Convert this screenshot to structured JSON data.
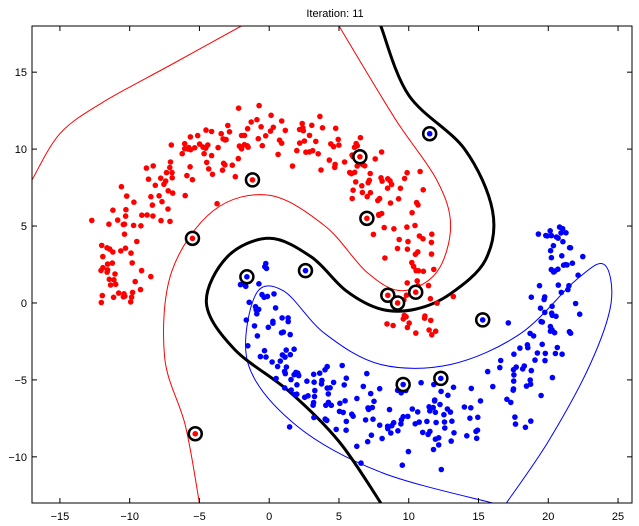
{
  "chart_data": {
    "type": "scatter",
    "title": "Iteration: 11",
    "xlabel": "",
    "ylabel": "",
    "xlim": [
      -17,
      26
    ],
    "ylim": [
      -13,
      18
    ],
    "xticks": [
      -15,
      -10,
      -5,
      0,
      5,
      10,
      15,
      20,
      25
    ],
    "xtick_labels": [
      "−15",
      "−10",
      "−5",
      "0",
      "5",
      "10",
      "15",
      "20",
      "25"
    ],
    "yticks": [
      15,
      10,
      5,
      0,
      -5,
      -10
    ],
    "ytick_labels": [
      "15",
      "10",
      "5",
      "0",
      "−5",
      "−10"
    ],
    "grid": false,
    "legend": "none",
    "colors": {
      "class_a": "#ff0000",
      "class_b": "#0000ff",
      "decision_boundary": "#000000",
      "support_vector_ring": "#000000",
      "axes": "#000000"
    },
    "series": [
      {
        "class": "red",
        "arm": {
          "cx": 0.0,
          "cy": 0.0,
          "a_from": 0.0,
          "a_to": 3.33,
          "R": 11.0,
          "spread": 1.1,
          "count": 260
        }
      },
      {
        "class": "blue",
        "arm": {
          "cx": 10.0,
          "cy": 3.0,
          "a_from": 3.14,
          "a_to": 6.47,
          "R": 11.0,
          "spread": 1.1,
          "count": 260
        }
      }
    ],
    "decision_boundary": [
      [
        8.0,
        -13.0
      ],
      [
        5.0,
        -9.0
      ],
      [
        1.5,
        -5.8
      ],
      [
        -2.5,
        -3.0
      ],
      [
        -4.5,
        0.0
      ],
      [
        -3.0,
        3.0
      ],
      [
        0.0,
        4.2
      ],
      [
        3.0,
        3.0
      ],
      [
        5.5,
        0.8
      ],
      [
        8.0,
        -0.4
      ],
      [
        10.5,
        -0.4
      ],
      [
        13.0,
        0.6
      ],
      [
        15.5,
        2.8
      ],
      [
        16.0,
        6.0
      ],
      [
        14.0,
        10.0
      ],
      [
        10.0,
        13.5
      ],
      [
        8.0,
        18.0
      ]
    ],
    "margin_red": [
      [
        -17.0,
        8.0
      ],
      [
        -15.0,
        11.0
      ],
      [
        -12.0,
        13.0
      ],
      [
        -7.0,
        15.5
      ],
      [
        -2.0,
        18.0
      ]
    ],
    "margin_red_inner": [
      [
        -5.0,
        -13.0
      ],
      [
        -6.0,
        -8.0
      ],
      [
        -7.5,
        -3.5
      ],
      [
        -7.0,
        2.0
      ],
      [
        -4.0,
        6.0
      ],
      [
        0.0,
        7.0
      ],
      [
        4.0,
        5.0
      ],
      [
        7.0,
        2.0
      ],
      [
        9.5,
        0.8
      ],
      [
        12.0,
        2.0
      ],
      [
        13.0,
        5.0
      ],
      [
        12.0,
        8.0
      ],
      [
        9.0,
        12.0
      ],
      [
        5.0,
        18.0
      ]
    ],
    "margin_blue": [
      [
        17.0,
        -13.0
      ],
      [
        20.0,
        -9.0
      ],
      [
        23.0,
        -4.0
      ],
      [
        24.5,
        0.0
      ],
      [
        24.0,
        2.5
      ],
      [
        22.0,
        1.5
      ],
      [
        18.0,
        -2.0
      ],
      [
        13.0,
        -4.0
      ],
      [
        8.0,
        -4.0
      ],
      [
        4.0,
        -2.0
      ],
      [
        1.0,
        0.8
      ],
      [
        -1.0,
        0.5
      ],
      [
        -1.5,
        -4.0
      ],
      [
        2.0,
        -8.0
      ],
      [
        8.0,
        -11.0
      ],
      [
        16.0,
        -13.0
      ]
    ],
    "margin_blue_outer": [
      [
        12.0,
        -13.0
      ],
      [
        20.0,
        -13.0
      ]
    ],
    "support_vectors": [
      {
        "x": 6.5,
        "y": 9.5,
        "class": "red"
      },
      {
        "x": -1.2,
        "y": 8.0,
        "class": "red"
      },
      {
        "x": 7.0,
        "y": 5.5,
        "class": "red"
      },
      {
        "x": -5.5,
        "y": 4.2,
        "class": "red"
      },
      {
        "x": 8.5,
        "y": 0.5,
        "class": "red"
      },
      {
        "x": 9.2,
        "y": 0.0,
        "class": "red"
      },
      {
        "x": 10.5,
        "y": 0.7,
        "class": "red"
      },
      {
        "x": -5.3,
        "y": -8.5,
        "class": "red"
      },
      {
        "x": 11.5,
        "y": 11.0,
        "class": "blue"
      },
      {
        "x": 2.6,
        "y": 2.1,
        "class": "blue"
      },
      {
        "x": -1.6,
        "y": 1.7,
        "class": "blue"
      },
      {
        "x": 15.3,
        "y": -1.1,
        "class": "blue"
      },
      {
        "x": 9.6,
        "y": -5.3,
        "class": "blue"
      },
      {
        "x": 12.3,
        "y": -4.9,
        "class": "blue"
      }
    ]
  }
}
